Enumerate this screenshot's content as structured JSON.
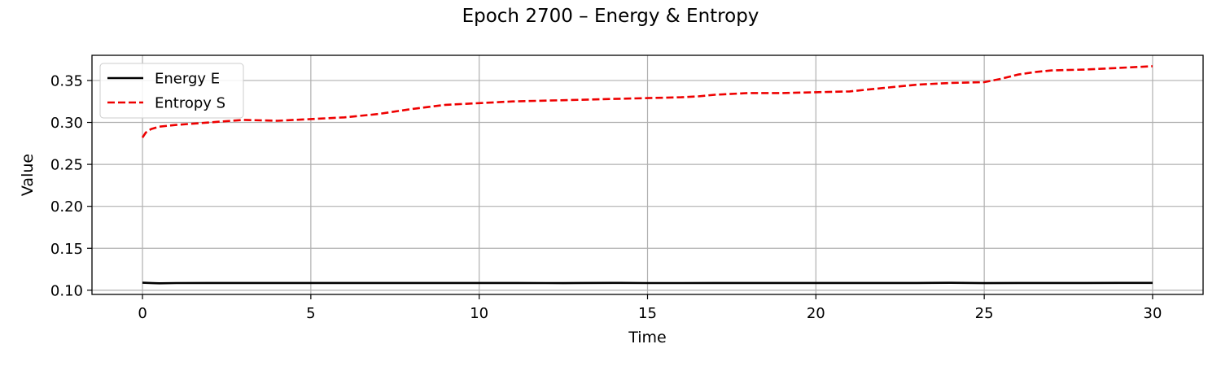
{
  "chart_data": {
    "type": "line",
    "title": "Epoch 2700 – Energy & Entropy",
    "xlabel": "Time",
    "ylabel": "Value",
    "xlim": [
      -1.5,
      31.5
    ],
    "ylim": [
      0.095,
      0.38
    ],
    "xticks": [
      0,
      5,
      10,
      15,
      20,
      25,
      30
    ],
    "yticks": [
      0.1,
      0.15,
      0.2,
      0.25,
      0.3,
      0.35
    ],
    "xtick_labels": [
      "0",
      "5",
      "10",
      "15",
      "20",
      "25",
      "30"
    ],
    "ytick_labels": [
      "0.10",
      "0.15",
      "0.20",
      "0.25",
      "0.30",
      "0.35"
    ],
    "grid": true,
    "legend_position": "top-left",
    "series": [
      {
        "name": "Energy E",
        "color": "#000000",
        "style": "solid",
        "x": [
          0,
          0.3,
          0.5,
          1,
          2,
          3,
          4,
          5,
          6,
          7,
          8,
          9,
          10,
          11,
          12,
          12.5,
          13,
          14,
          15,
          16,
          17,
          18,
          19,
          20,
          21,
          22,
          23,
          24,
          25,
          26,
          27,
          28,
          29,
          30
        ],
        "y": [
          0.109,
          0.1085,
          0.1083,
          0.1086,
          0.1087,
          0.1087,
          0.1087,
          0.1087,
          0.1087,
          0.1087,
          0.1087,
          0.1087,
          0.1087,
          0.1087,
          0.1086,
          0.1085,
          0.1087,
          0.1088,
          0.1086,
          0.1086,
          0.1087,
          0.1087,
          0.1087,
          0.1087,
          0.1087,
          0.1087,
          0.1087,
          0.1089,
          0.1085,
          0.1087,
          0.1087,
          0.1087,
          0.1088,
          0.1088
        ]
      },
      {
        "name": "Entropy S",
        "color": "#ee0000",
        "style": "dashed",
        "x": [
          0,
          0.1,
          0.25,
          0.5,
          1,
          2,
          3,
          4,
          5,
          6,
          7,
          8,
          9,
          10,
          11,
          12,
          13,
          14,
          15,
          16,
          16.5,
          17,
          18,
          19,
          20,
          21,
          22,
          23,
          24,
          25,
          25.5,
          26,
          26.5,
          27,
          28,
          29,
          30
        ],
        "y": [
          0.282,
          0.288,
          0.292,
          0.295,
          0.297,
          0.3,
          0.303,
          0.302,
          0.304,
          0.306,
          0.31,
          0.316,
          0.321,
          0.323,
          0.325,
          0.326,
          0.327,
          0.328,
          0.329,
          0.33,
          0.331,
          0.333,
          0.335,
          0.335,
          0.336,
          0.337,
          0.341,
          0.345,
          0.347,
          0.348,
          0.352,
          0.357,
          0.36,
          0.362,
          0.363,
          0.365,
          0.367
        ]
      }
    ]
  }
}
